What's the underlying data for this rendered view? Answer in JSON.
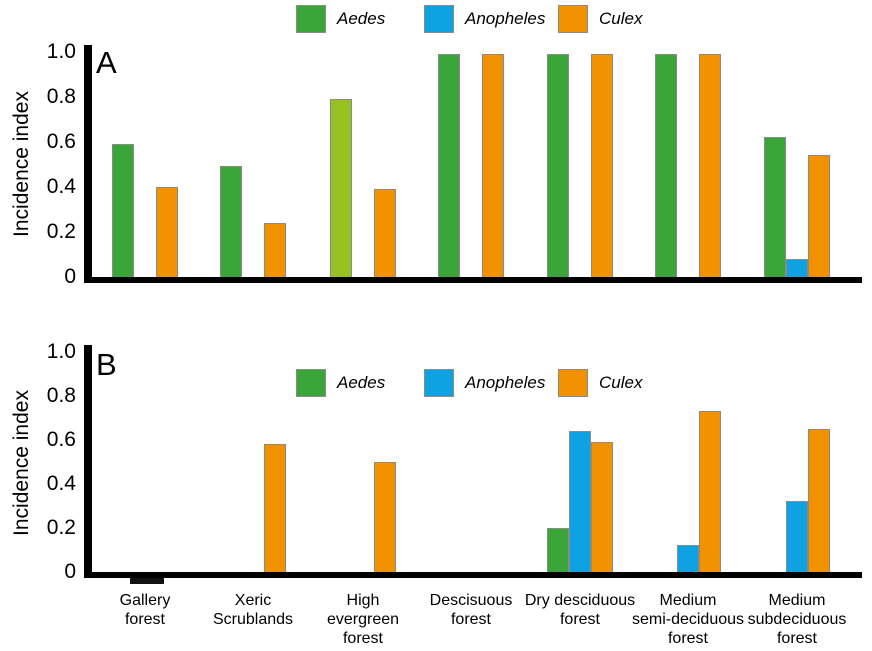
{
  "figure_title": "",
  "colors": {
    "aedes": "#3AA63A",
    "aedes_light": "#96C121",
    "anopheles": "#0FA2E2",
    "culex": "#F39200",
    "axis": "#000000",
    "bar_border": "#8A8A8A",
    "near_zero_nub": "#121212"
  },
  "category_labels": [
    [
      "Gallery",
      "forest"
    ],
    [
      "Xeric",
      "Scrublands"
    ],
    [
      "High",
      "evergreen",
      "forest"
    ],
    [
      "Descisuous",
      "forest"
    ],
    [
      "Dry desciduous",
      "forest"
    ],
    [
      "Medium",
      "semi-deciduous",
      "forest"
    ],
    [
      "Medium",
      "subdeciduous",
      "forest"
    ]
  ],
  "chart_data": [
    {
      "type": "bar",
      "panel": "A",
      "title": "",
      "xlabel": "",
      "ylabel": "Incidence index",
      "ylim": [
        0,
        1.0
      ],
      "yticks": [
        "1.0",
        "0.8",
        "0.6",
        "0.4",
        "0.2",
        "0"
      ],
      "ytick_values": [
        1.0,
        0.8,
        0.6,
        0.4,
        0.2,
        0
      ],
      "grid": false,
      "legend_position": "top outside, horizontal",
      "categories": [
        "Gallery forest",
        "Xeric Scrublands",
        "High evergreen forest",
        "Descisuous forest",
        "Dry desciduous forest",
        "Medium semi-deciduous forest",
        "Medium subdeciduous forest"
      ],
      "series": [
        {
          "name": "Aedes",
          "color": "#3AA63A",
          "values": [
            0.6,
            0.5,
            0.8,
            1.0,
            1.0,
            1.0,
            0.63
          ],
          "bar_colors": [
            null,
            null,
            "#96C121",
            null,
            null,
            null,
            null
          ]
        },
        {
          "name": "Anopheles",
          "color": "#0FA2E2",
          "values": [
            null,
            null,
            null,
            null,
            null,
            null,
            0.09
          ]
        },
        {
          "name": "Culex",
          "color": "#F39200",
          "values": [
            0.41,
            0.25,
            0.4,
            1.0,
            1.0,
            1.0,
            0.55
          ]
        }
      ]
    },
    {
      "type": "bar",
      "panel": "B",
      "title": "",
      "xlabel": "",
      "ylabel": "Incidence index",
      "ylim": [
        0,
        1.0
      ],
      "yticks": [
        "1.0",
        "0.8",
        "0.6",
        "0.4",
        "0.2",
        "0"
      ],
      "ytick_values": [
        1.0,
        0.8,
        0.6,
        0.4,
        0.2,
        0
      ],
      "grid": false,
      "legend_position": "inside top, horizontal",
      "note": "Gallery forest bar is a near-zero dark nub at the baseline",
      "categories": [
        "Gallery forest",
        "Xeric Scrublands",
        "High evergreen forest",
        "Descisuous forest",
        "Dry desciduous forest",
        "Medium semi-deciduous forest",
        "Medium subdeciduous forest"
      ],
      "series": [
        {
          "name": "Aedes",
          "color": "#3AA63A",
          "values": [
            0.01,
            null,
            null,
            null,
            0.21,
            null,
            null
          ]
        },
        {
          "name": "Anopheles",
          "color": "#0FA2E2",
          "values": [
            null,
            null,
            null,
            null,
            0.65,
            0.13,
            0.33
          ]
        },
        {
          "name": "Culex",
          "color": "#F39200",
          "values": [
            null,
            0.59,
            0.51,
            null,
            0.6,
            0.74,
            0.66
          ]
        }
      ]
    }
  ]
}
